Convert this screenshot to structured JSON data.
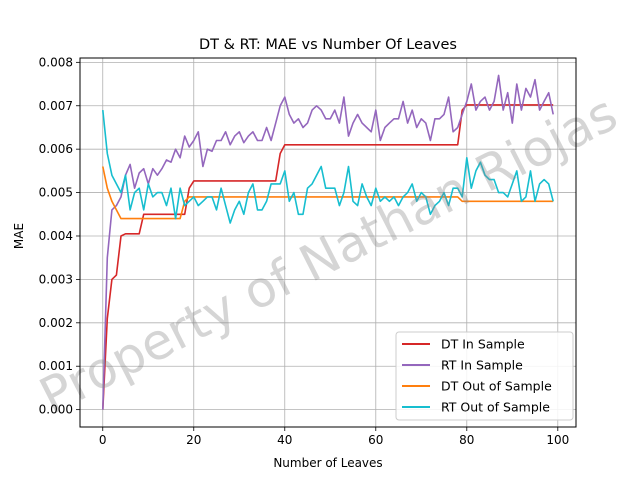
{
  "chart_data": {
    "type": "line",
    "title": "DT & RT: MAE vs Number Of Leaves",
    "xlabel": "Number of Leaves",
    "ylabel": "MAE",
    "xlim": [
      -5,
      104
    ],
    "ylim": [
      -0.0004,
      0.0081
    ],
    "xticks": [
      0,
      20,
      40,
      60,
      80,
      100
    ],
    "yticks": [
      0.0,
      0.001,
      0.002,
      0.003,
      0.004,
      0.005,
      0.006,
      0.007,
      0.008
    ],
    "ytick_labels": [
      "0.000",
      "0.001",
      "0.002",
      "0.003",
      "0.004",
      "0.005",
      "0.006",
      "0.007",
      "0.008"
    ],
    "grid": true,
    "legend_position": "lower-right",
    "watermark": "Property of Nathan Riojas",
    "series": [
      {
        "name": "DT In Sample",
        "color": "#d62728",
        "x": [
          0,
          1,
          2,
          3,
          4,
          5,
          6,
          7,
          8,
          9,
          10,
          11,
          12,
          13,
          14,
          15,
          16,
          17,
          18,
          19,
          20,
          21,
          22,
          23,
          24,
          25,
          26,
          27,
          28,
          29,
          30,
          31,
          32,
          33,
          34,
          35,
          36,
          37,
          38,
          39,
          40,
          41,
          42,
          43,
          44,
          45,
          46,
          47,
          48,
          49,
          50,
          51,
          52,
          53,
          54,
          55,
          56,
          57,
          58,
          59,
          60,
          61,
          62,
          63,
          64,
          65,
          66,
          67,
          68,
          69,
          70,
          71,
          72,
          73,
          74,
          75,
          76,
          77,
          78,
          79,
          80,
          81,
          82,
          83,
          84,
          85,
          86,
          87,
          88,
          89,
          90,
          91,
          92,
          93,
          94,
          95,
          96,
          97,
          98,
          99
        ],
        "values": [
          0.0,
          0.0021,
          0.003,
          0.0031,
          0.004,
          0.00405,
          0.00405,
          0.00405,
          0.00405,
          0.0045,
          0.0045,
          0.0045,
          0.0045,
          0.0045,
          0.0045,
          0.0045,
          0.0045,
          0.0045,
          0.0045,
          0.0051,
          0.00527,
          0.00527,
          0.00527,
          0.00527,
          0.00527,
          0.00527,
          0.00527,
          0.00527,
          0.00527,
          0.00527,
          0.00527,
          0.00527,
          0.00527,
          0.00527,
          0.00527,
          0.00527,
          0.00527,
          0.00527,
          0.00527,
          0.0059,
          0.0061,
          0.0061,
          0.0061,
          0.0061,
          0.0061,
          0.0061,
          0.0061,
          0.0061,
          0.0061,
          0.0061,
          0.0061,
          0.0061,
          0.0061,
          0.0061,
          0.0061,
          0.0061,
          0.0061,
          0.0061,
          0.0061,
          0.0061,
          0.0061,
          0.0061,
          0.0061,
          0.0061,
          0.0061,
          0.0061,
          0.0061,
          0.0061,
          0.0061,
          0.0061,
          0.0061,
          0.0061,
          0.0061,
          0.0061,
          0.0061,
          0.0061,
          0.0061,
          0.0061,
          0.0061,
          0.0069,
          0.00702,
          0.00702,
          0.00702,
          0.00702,
          0.00702,
          0.00702,
          0.00702,
          0.00702,
          0.00702,
          0.00702,
          0.00702,
          0.00702,
          0.00702,
          0.00702,
          0.00702,
          0.00702,
          0.00702,
          0.00702,
          0.00702,
          0.00702
        ]
      },
      {
        "name": "RT In Sample",
        "color": "#9467bd",
        "x": [
          0,
          1,
          2,
          3,
          4,
          5,
          6,
          7,
          8,
          9,
          10,
          11,
          12,
          13,
          14,
          15,
          16,
          17,
          18,
          19,
          20,
          21,
          22,
          23,
          24,
          25,
          26,
          27,
          28,
          29,
          30,
          31,
          32,
          33,
          34,
          35,
          36,
          37,
          38,
          39,
          40,
          41,
          42,
          43,
          44,
          45,
          46,
          47,
          48,
          49,
          50,
          51,
          52,
          53,
          54,
          55,
          56,
          57,
          58,
          59,
          60,
          61,
          62,
          63,
          64,
          65,
          66,
          67,
          68,
          69,
          70,
          71,
          72,
          73,
          74,
          75,
          76,
          77,
          78,
          79,
          80,
          81,
          82,
          83,
          84,
          85,
          86,
          87,
          88,
          89,
          90,
          91,
          92,
          93,
          94,
          95,
          96,
          97,
          98,
          99
        ],
        "values": [
          0.0,
          0.0035,
          0.0046,
          0.0047,
          0.0049,
          0.0054,
          0.00565,
          0.0051,
          0.00545,
          0.00555,
          0.0052,
          0.00555,
          0.0054,
          0.00555,
          0.00575,
          0.0057,
          0.006,
          0.0058,
          0.0063,
          0.00605,
          0.0062,
          0.0064,
          0.0056,
          0.006,
          0.00595,
          0.0062,
          0.0062,
          0.0064,
          0.0061,
          0.0063,
          0.0064,
          0.00615,
          0.0063,
          0.0064,
          0.0062,
          0.0062,
          0.0065,
          0.0062,
          0.0066,
          0.007,
          0.0072,
          0.0068,
          0.0066,
          0.0067,
          0.0065,
          0.0066,
          0.0069,
          0.007,
          0.0069,
          0.0067,
          0.0067,
          0.0069,
          0.0066,
          0.0072,
          0.0063,
          0.0066,
          0.0068,
          0.0066,
          0.0065,
          0.0064,
          0.0069,
          0.0062,
          0.0065,
          0.0066,
          0.0067,
          0.0067,
          0.0071,
          0.0066,
          0.0069,
          0.0065,
          0.0067,
          0.0066,
          0.0062,
          0.0067,
          0.0067,
          0.0068,
          0.0072,
          0.0064,
          0.0065,
          0.0068,
          0.0071,
          0.0075,
          0.0069,
          0.0071,
          0.0072,
          0.0069,
          0.0071,
          0.0077,
          0.0069,
          0.0073,
          0.0066,
          0.0075,
          0.0069,
          0.0074,
          0.0072,
          0.0076,
          0.0069,
          0.0071,
          0.0073,
          0.0068
        ]
      },
      {
        "name": "DT Out of Sample",
        "color": "#ff7f0e",
        "x": [
          0,
          1,
          2,
          3,
          4,
          5,
          6,
          7,
          8,
          9,
          10,
          11,
          12,
          13,
          14,
          15,
          16,
          17,
          18,
          19,
          20,
          21,
          22,
          23,
          24,
          25,
          26,
          27,
          28,
          29,
          30,
          31,
          32,
          33,
          34,
          35,
          36,
          37,
          38,
          39,
          40,
          41,
          42,
          43,
          44,
          45,
          46,
          47,
          48,
          49,
          50,
          51,
          52,
          53,
          54,
          55,
          56,
          57,
          58,
          59,
          60,
          61,
          62,
          63,
          64,
          65,
          66,
          67,
          68,
          69,
          70,
          71,
          72,
          73,
          74,
          75,
          76,
          77,
          78,
          79,
          80,
          81,
          82,
          83,
          84,
          85,
          86,
          87,
          88,
          89,
          90,
          91,
          92,
          93,
          94,
          95,
          96,
          97,
          98,
          99
        ],
        "values": [
          0.0056,
          0.0051,
          0.0048,
          0.0046,
          0.0044,
          0.0044,
          0.0044,
          0.0044,
          0.0044,
          0.0044,
          0.0044,
          0.0044,
          0.0044,
          0.0044,
          0.0044,
          0.0044,
          0.0044,
          0.0044,
          0.0048,
          0.0049,
          0.0049,
          0.0049,
          0.0049,
          0.0049,
          0.0049,
          0.0049,
          0.0049,
          0.0049,
          0.0049,
          0.0049,
          0.0049,
          0.0049,
          0.0049,
          0.0049,
          0.0049,
          0.0049,
          0.0049,
          0.0049,
          0.0049,
          0.0049,
          0.0049,
          0.0049,
          0.0049,
          0.0049,
          0.0049,
          0.0049,
          0.0049,
          0.0049,
          0.0049,
          0.0049,
          0.0049,
          0.0049,
          0.0049,
          0.0049,
          0.0049,
          0.0049,
          0.0049,
          0.0049,
          0.0049,
          0.0049,
          0.0049,
          0.0049,
          0.0049,
          0.0049,
          0.0049,
          0.0049,
          0.0049,
          0.0049,
          0.0049,
          0.0049,
          0.0049,
          0.0049,
          0.0049,
          0.0049,
          0.0049,
          0.0049,
          0.0049,
          0.0049,
          0.0049,
          0.0048,
          0.0048,
          0.0048,
          0.0048,
          0.0048,
          0.0048,
          0.0048,
          0.0048,
          0.0048,
          0.0048,
          0.0048,
          0.0048,
          0.0048,
          0.0048,
          0.0048,
          0.0048,
          0.0048,
          0.0048,
          0.0048,
          0.0048,
          0.0048
        ]
      },
      {
        "name": "RT Out of Sample",
        "color": "#17becf",
        "x": [
          0,
          1,
          2,
          3,
          4,
          5,
          6,
          7,
          8,
          9,
          10,
          11,
          12,
          13,
          14,
          15,
          16,
          17,
          18,
          19,
          20,
          21,
          22,
          23,
          24,
          25,
          26,
          27,
          28,
          29,
          30,
          31,
          32,
          33,
          34,
          35,
          36,
          37,
          38,
          39,
          40,
          41,
          42,
          43,
          44,
          45,
          46,
          47,
          48,
          49,
          50,
          51,
          52,
          53,
          54,
          55,
          56,
          57,
          58,
          59,
          60,
          61,
          62,
          63,
          64,
          65,
          66,
          67,
          68,
          69,
          70,
          71,
          72,
          73,
          74,
          75,
          76,
          77,
          78,
          79,
          80,
          81,
          82,
          83,
          84,
          85,
          86,
          87,
          88,
          89,
          90,
          91,
          92,
          93,
          94,
          95,
          96,
          97,
          98,
          99
        ],
        "values": [
          0.0069,
          0.0059,
          0.0054,
          0.0052,
          0.005,
          0.0054,
          0.0046,
          0.005,
          0.0051,
          0.0046,
          0.0052,
          0.0049,
          0.005,
          0.005,
          0.0047,
          0.0051,
          0.0044,
          0.0051,
          0.0047,
          0.0048,
          0.0049,
          0.0047,
          0.0048,
          0.0049,
          0.0049,
          0.0046,
          0.0051,
          0.0047,
          0.0043,
          0.0046,
          0.0048,
          0.0045,
          0.005,
          0.0052,
          0.0046,
          0.0046,
          0.0048,
          0.0052,
          0.0052,
          0.0052,
          0.0055,
          0.0048,
          0.005,
          0.0045,
          0.0045,
          0.0051,
          0.0052,
          0.0054,
          0.0056,
          0.0051,
          0.0051,
          0.0051,
          0.0047,
          0.005,
          0.0056,
          0.0048,
          0.0047,
          0.0052,
          0.0049,
          0.0047,
          0.0051,
          0.0048,
          0.0049,
          0.0048,
          0.0049,
          0.0047,
          0.0049,
          0.005,
          0.0052,
          0.0048,
          0.005,
          0.0049,
          0.0045,
          0.0047,
          0.0048,
          0.005,
          0.0047,
          0.0051,
          0.0051,
          0.0049,
          0.0058,
          0.0051,
          0.0055,
          0.0057,
          0.0054,
          0.0053,
          0.0053,
          0.005,
          0.005,
          0.0049,
          0.0052,
          0.0055,
          0.0048,
          0.0049,
          0.0055,
          0.0048,
          0.0052,
          0.0053,
          0.0052,
          0.0048
        ]
      }
    ]
  }
}
